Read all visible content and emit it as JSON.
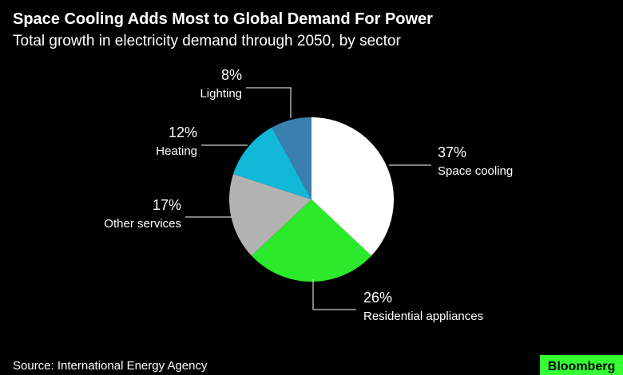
{
  "chart_data": {
    "type": "pie",
    "title": "Space Cooling Adds Most to Global Demand For Power",
    "subtitle": "Total growth in electricity demand through 2050, by sector",
    "categories": [
      "Space cooling",
      "Residential appliances",
      "Other services",
      "Heating",
      "Lighting"
    ],
    "values": [
      37,
      26,
      17,
      12,
      8
    ],
    "value_labels": [
      "37%",
      "26%",
      "17%",
      "12%",
      "8%"
    ],
    "colors": [
      "#ffffff",
      "#2bea2b",
      "#b2b2b2",
      "#12b8d8",
      "#3a7fae"
    ],
    "source": "Source: International Energy Agency"
  },
  "logo": "Bloomberg"
}
